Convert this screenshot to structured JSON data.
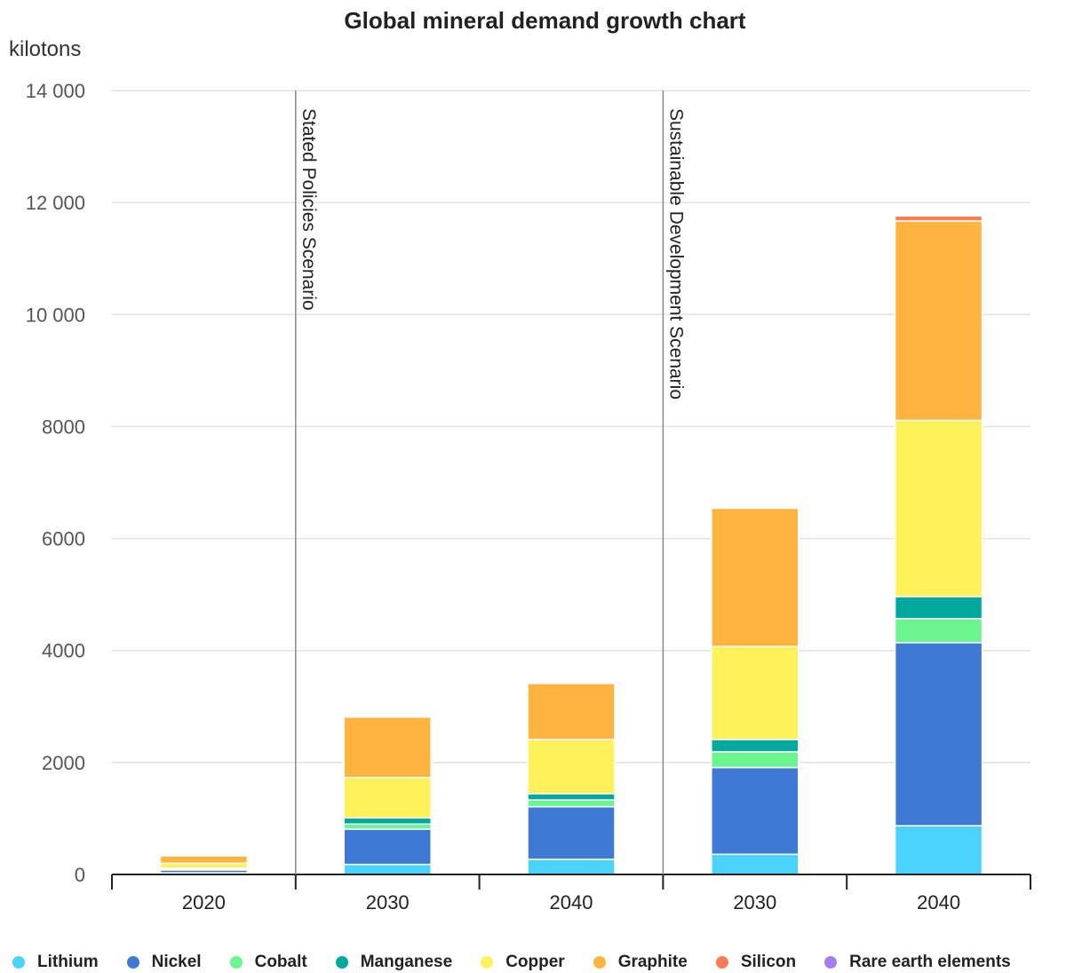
{
  "chart_data": {
    "type": "bar",
    "stacked": true,
    "title": "Global mineral demand growth chart",
    "unit_label": "kilotons",
    "xlabel": "",
    "ylabel": "",
    "ylim": [
      0,
      14000
    ],
    "y_ticks": [
      0,
      2000,
      4000,
      6000,
      8000,
      10000,
      12000,
      14000
    ],
    "y_tick_labels": [
      "0",
      "2000",
      "4000",
      "6000",
      "8000",
      "10 000",
      "12 000",
      "14 000"
    ],
    "grid": true,
    "legend_position": "bottom",
    "categories": [
      "2020",
      "2030",
      "2040",
      "2030",
      "2040"
    ],
    "scenarios": [
      {
        "label": "Stated Policies Scenario",
        "start_index": 1
      },
      {
        "label": "Sustainable Development Scenario",
        "start_index": 3
      }
    ],
    "series": [
      {
        "name": "Lithium",
        "color": "#4ad3fc",
        "values": [
          30,
          180,
          270,
          360,
          870
        ]
      },
      {
        "name": "Nickel",
        "color": "#3e7ad3",
        "values": [
          50,
          630,
          940,
          1550,
          3270
        ]
      },
      {
        "name": "Cobalt",
        "color": "#6cf58e",
        "values": [
          20,
          90,
          120,
          280,
          430
        ]
      },
      {
        "name": "Manganese",
        "color": "#00a99d",
        "values": [
          10,
          110,
          110,
          220,
          390
        ]
      },
      {
        "name": "Copper",
        "color": "#fff159",
        "values": [
          90,
          720,
          970,
          1660,
          3150
        ]
      },
      {
        "name": "Graphite",
        "color": "#ffb43f",
        "values": [
          130,
          1080,
          1000,
          2470,
          3560
        ]
      },
      {
        "name": "Silicon",
        "color": "#ff7b53",
        "values": [
          0,
          0,
          0,
          0,
          90
        ]
      },
      {
        "name": "Rare earth elements",
        "color": "#a67ef0",
        "values": [
          0,
          0,
          0,
          0,
          0
        ]
      }
    ]
  }
}
